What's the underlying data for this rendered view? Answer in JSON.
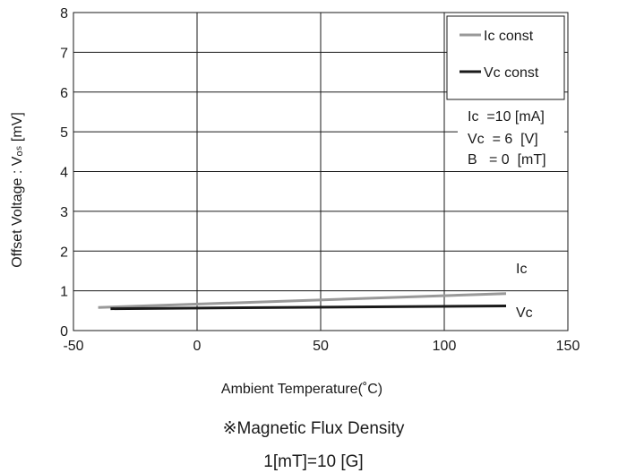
{
  "chart_data": {
    "type": "line",
    "xlabel": "Ambient Temperature(˚C)",
    "ylabel": "Offset Voltage : Vₒₛ [mV]",
    "xlim": [
      -50,
      150
    ],
    "ylim": [
      0,
      8
    ],
    "xticks": [
      "-50",
      "0",
      "50",
      "100",
      "150"
    ],
    "yticks": [
      "0",
      "1",
      "2",
      "3",
      "4",
      "5",
      "6",
      "7",
      "8"
    ],
    "grid": true,
    "legend_position": "top-right",
    "series": [
      {
        "name": "Ic const",
        "label": "Ic",
        "color": "#999999",
        "x": [
          -40,
          125
        ],
        "y": [
          0.58,
          0.93
        ]
      },
      {
        "name": "Vc const",
        "label": "Vc",
        "color": "#1a1a1a",
        "x": [
          -35,
          125
        ],
        "y": [
          0.55,
          0.62
        ]
      }
    ],
    "conditions": [
      "Ic  =10 [mA]",
      "Vc  = 6  [V]",
      "B   = 0  [mT]"
    ]
  },
  "notes": {
    "line1": "※Magnetic Flux Density",
    "line2": "1[mT]=10 [G]"
  }
}
